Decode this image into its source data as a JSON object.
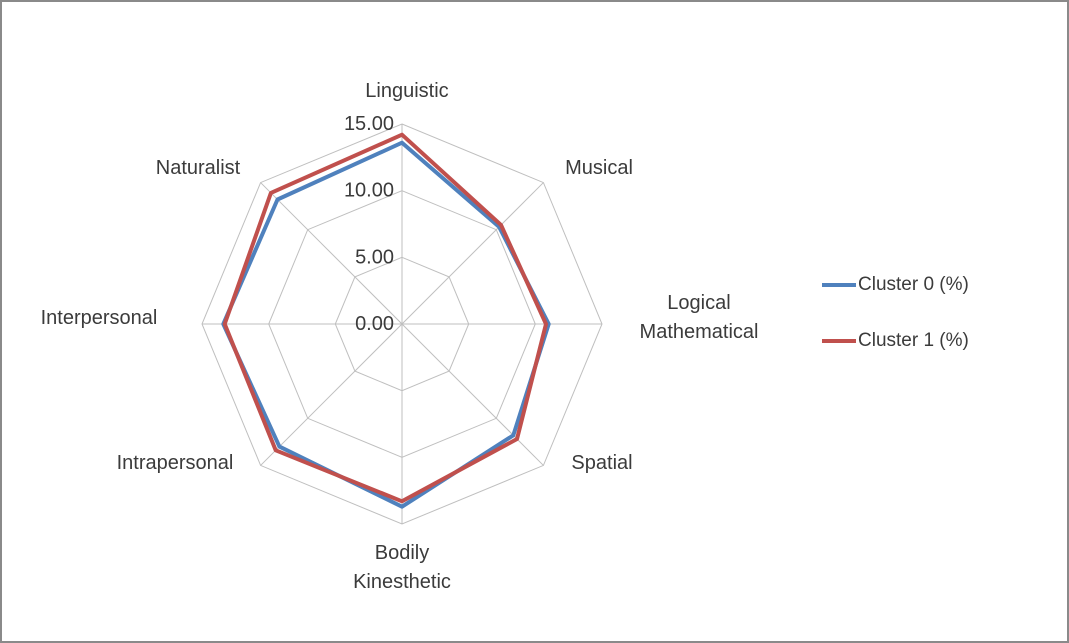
{
  "frame": {
    "background": "#ffffff",
    "border_color": "#8a8a8a"
  },
  "chart_data": {
    "type": "radar",
    "title": "",
    "categories": [
      "Linguistic",
      "Musical",
      "Logical\nMathematical",
      "Spatial",
      "Bodily\nKinesthetic",
      "Intrapersonal",
      "Interpersonal",
      "Naturalist"
    ],
    "axis": {
      "min": 0,
      "max": 15,
      "tick_interval": 5,
      "ticks": [
        {
          "value": 0,
          "label": "0.00"
        },
        {
          "value": 5,
          "label": "5.00"
        },
        {
          "value": 10,
          "label": "10.00"
        },
        {
          "value": 15,
          "label": "15.00"
        }
      ]
    },
    "grid": {
      "shape": "polygon",
      "color": "#bfbfbf",
      "rings": [
        5,
        10,
        15
      ]
    },
    "series": [
      {
        "name": "Cluster 0 (%)",
        "color": "#4F81BD",
        "values": [
          13.6,
          10.3,
          11.0,
          11.8,
          13.7,
          13.0,
          13.4,
          13.2
        ]
      },
      {
        "name": "Cluster 1 (%)",
        "color": "#C0504D",
        "values": [
          14.2,
          10.5,
          10.8,
          12.2,
          13.3,
          13.4,
          13.3,
          13.9
        ]
      }
    ],
    "legend": {
      "position": "right"
    },
    "text_color": "#3b3b3b"
  }
}
